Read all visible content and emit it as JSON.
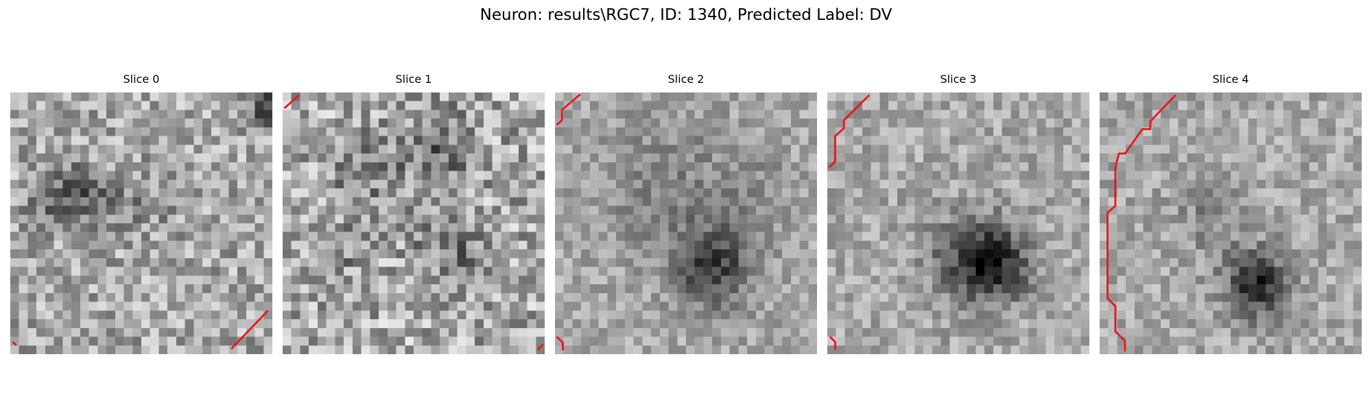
{
  "title": "Neuron: results\\RGC7, ID: 1340, Predicted Label: DV",
  "chart_data": {
    "type": "heatmap",
    "colormap": "gray",
    "grid": false,
    "contour_color": "#e8161b",
    "grid_size": 30,
    "panels": [
      {
        "title": "Slice 0",
        "dark_blobs": [
          [
            7.5,
            11.0,
            2.2,
            0.32
          ],
          [
            3.5,
            13.0,
            1.6,
            0.18
          ],
          [
            14.0,
            12.5,
            2.5,
            0.12
          ],
          [
            29,
            1,
            1.4,
            0.5
          ]
        ],
        "noise": 0.22,
        "contours": [
          [
            [
              0.3,
              28.6
            ],
            [
              0.7,
              29.0
            ]
          ],
          [
            [
              29.5,
              25.0
            ],
            [
              25.3,
              29.4
            ]
          ]
        ]
      },
      {
        "title": "Slice 1",
        "dark_blobs": [
          [
            17.0,
            6.0,
            3.0,
            0.22
          ],
          [
            9.0,
            9.5,
            3.0,
            0.15
          ],
          [
            19.0,
            18.0,
            3.0,
            0.18
          ],
          [
            6.0,
            17.5,
            2.0,
            0.12
          ]
        ],
        "noise": 0.26,
        "contours": [
          [
            [
              0.2,
              1.8
            ],
            [
              1.9,
              0.3
            ]
          ],
          [
            [
              29.8,
              28.9
            ],
            [
              29.2,
              29.5
            ]
          ]
        ]
      },
      {
        "title": "Slice 2",
        "dark_blobs": [
          [
            17.5,
            19.5,
            3.2,
            0.42
          ],
          [
            12.0,
            10.0,
            5.5,
            0.14
          ],
          [
            22.0,
            11.0,
            3.5,
            0.1
          ]
        ],
        "noise": 0.14,
        "contours": [
          [
            [
              0.2,
              3.7
            ],
            [
              0.8,
              3.2
            ],
            [
              0.8,
              2.0
            ],
            [
              2.9,
              0.2
            ]
          ],
          [
            [
              0.2,
              28.0
            ],
            [
              0.9,
              28.7
            ],
            [
              0.9,
              29.6
            ]
          ]
        ]
      },
      {
        "title": "Slice 3",
        "dark_blobs": [
          [
            18.5,
            19.0,
            3.0,
            0.48
          ],
          [
            15.0,
            18.5,
            3.5,
            0.18
          ]
        ],
        "noise": 0.15,
        "contours": [
          [
            [
              0.2,
              8.6
            ],
            [
              0.9,
              7.9
            ],
            [
              0.9,
              5.0
            ],
            [
              1.9,
              4.1
            ],
            [
              1.9,
              3.2
            ],
            [
              4.8,
              0.3
            ]
          ],
          [
            [
              0.3,
              28.0
            ],
            [
              0.9,
              28.6
            ],
            [
              0.9,
              29.5
            ]
          ]
        ]
      },
      {
        "title": "Slice 4",
        "dark_blobs": [
          [
            17.5,
            21.5,
            2.6,
            0.5
          ],
          [
            12.5,
            13.5,
            3.0,
            0.14
          ]
        ],
        "noise": 0.15,
        "contours": [
          [
            [
              8.7,
              0.3
            ],
            [
              5.8,
              3.3
            ],
            [
              5.8,
              4.2
            ],
            [
              4.9,
              4.2
            ],
            [
              2.9,
              7.0
            ],
            [
              2.2,
              7.0
            ],
            [
              1.8,
              8.6
            ],
            [
              1.8,
              13.0
            ],
            [
              0.9,
              13.8
            ],
            [
              0.9,
              23.6
            ],
            [
              1.8,
              24.5
            ],
            [
              1.8,
              27.4
            ],
            [
              2.9,
              28.5
            ],
            [
              2.9,
              29.7
            ]
          ]
        ]
      }
    ]
  }
}
